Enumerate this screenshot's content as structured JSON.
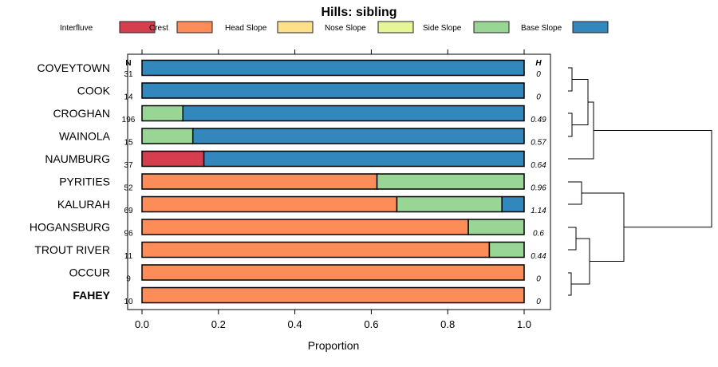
{
  "chart_data": {
    "type": "bar",
    "stacked": true,
    "orientation": "horizontal",
    "title": "Hills: sibling",
    "xlabel": "Proportion",
    "xlim": [
      0,
      1
    ],
    "xticks": [
      "0.0",
      "0.2",
      "0.4",
      "0.6",
      "0.8",
      "1.0"
    ],
    "n_header": "N",
    "h_header": "H",
    "legend_position": "top",
    "series": [
      {
        "name": "Interfluve",
        "color": "#D53E4F"
      },
      {
        "name": "Crest",
        "color": "#FC8D59"
      },
      {
        "name": "Head Slope",
        "color": "#FEE08B"
      },
      {
        "name": "Nose Slope",
        "color": "#E6F598"
      },
      {
        "name": "Side Slope",
        "color": "#99D594"
      },
      {
        "name": "Base Slope",
        "color": "#3288BD"
      }
    ],
    "categories": [
      {
        "name": "COVEYTOWN",
        "n": "31",
        "h": "0",
        "bold": false,
        "values": [
          0,
          0,
          0,
          0,
          0,
          1
        ]
      },
      {
        "name": "COOK",
        "n": "14",
        "h": "0",
        "bold": false,
        "values": [
          0,
          0,
          0,
          0,
          0,
          1
        ]
      },
      {
        "name": "CROGHAN",
        "n": "196",
        "h": "0.49",
        "bold": false,
        "values": [
          0,
          0,
          0,
          0,
          0.107,
          0.893
        ]
      },
      {
        "name": "WAINOLA",
        "n": "15",
        "h": "0.57",
        "bold": false,
        "values": [
          0,
          0,
          0,
          0,
          0.133,
          0.867
        ]
      },
      {
        "name": "NAUMBURG",
        "n": "37",
        "h": "0.64",
        "bold": false,
        "values": [
          0.162,
          0,
          0,
          0,
          0,
          0.838
        ]
      },
      {
        "name": "PYRITIES",
        "n": "52",
        "h": "0.96",
        "bold": false,
        "values": [
          0,
          0.615,
          0,
          0,
          0.385,
          0
        ]
      },
      {
        "name": "KALURAH",
        "n": "69",
        "h": "1.14",
        "bold": false,
        "values": [
          0,
          0.667,
          0,
          0,
          0.275,
          0.058
        ]
      },
      {
        "name": "HOGANSBURG",
        "n": "96",
        "h": "0.6",
        "bold": false,
        "values": [
          0,
          0.854,
          0,
          0,
          0.146,
          0
        ]
      },
      {
        "name": "TROUT RIVER",
        "n": "11",
        "h": "0.44",
        "bold": false,
        "values": [
          0,
          0.909,
          0,
          0,
          0.091,
          0
        ]
      },
      {
        "name": "OCCUR",
        "n": "9",
        "h": "0",
        "bold": false,
        "values": [
          0,
          1,
          0,
          0,
          0,
          0
        ]
      },
      {
        "name": "FAHEY",
        "n": "10",
        "h": "0",
        "bold": true,
        "values": [
          0,
          1,
          0,
          0,
          0,
          0
        ]
      }
    ]
  }
}
